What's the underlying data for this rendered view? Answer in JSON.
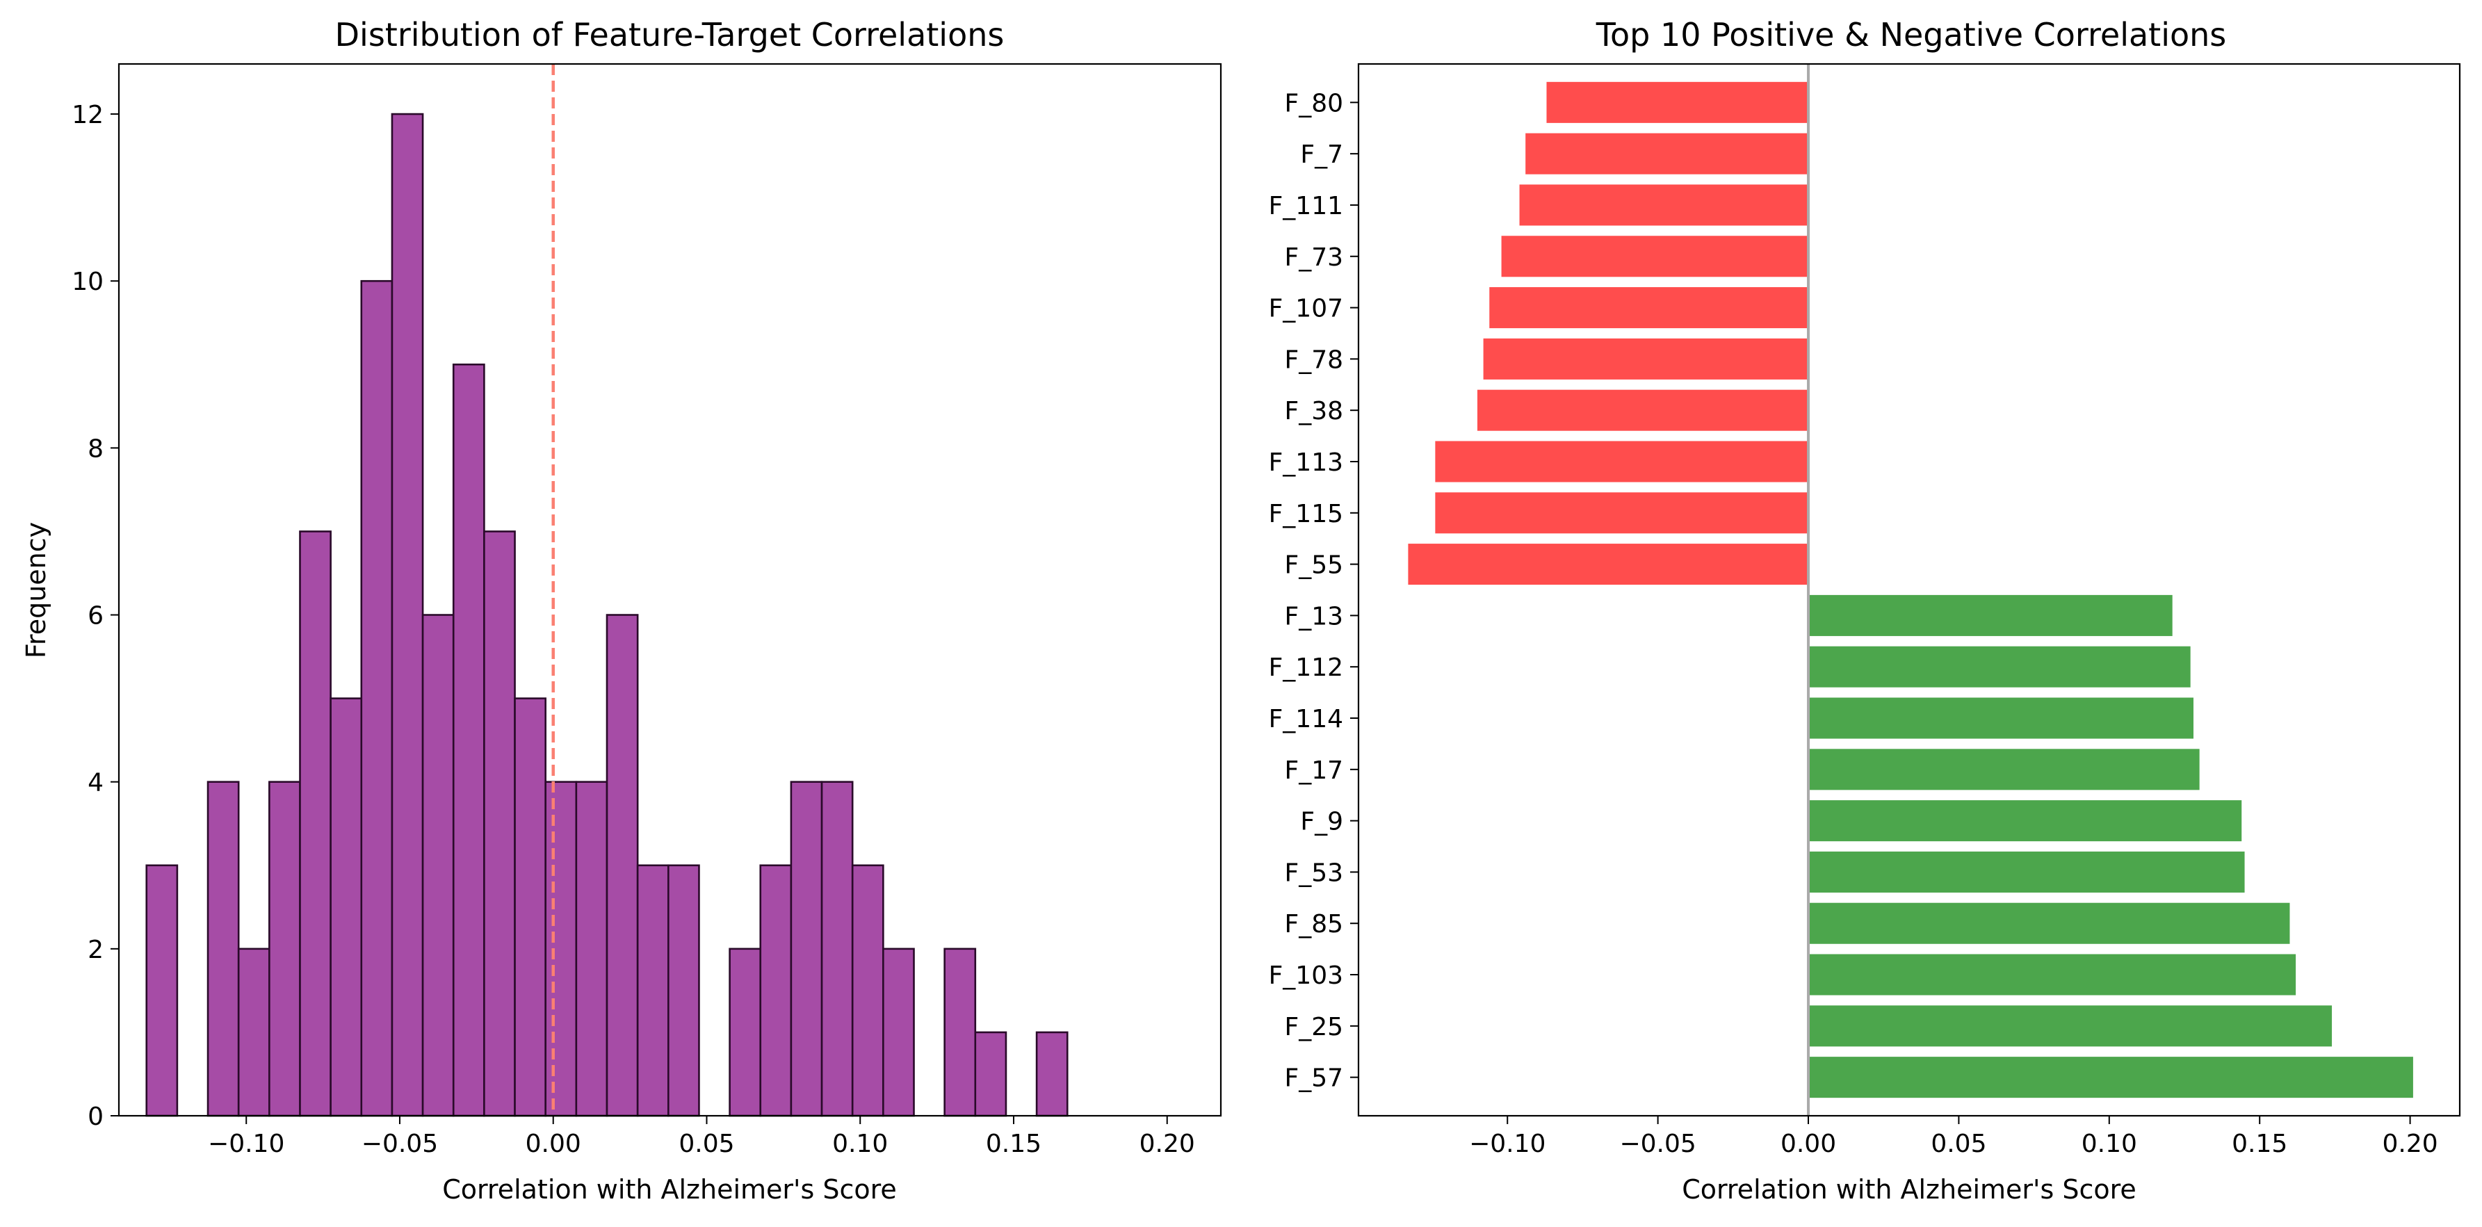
{
  "colors": {
    "hist_fill": "#a64ca6",
    "hist_edge": "#2a0a2a",
    "zero_line": "#fa8072",
    "negative_bar": "#ff4d4d",
    "positive_bar": "#4ca64c",
    "vertical_line": "#aaaaaa"
  },
  "chart_data": [
    {
      "type": "bar",
      "subtype": "histogram",
      "title": "Distribution of Feature-Target Correlations",
      "xlabel": "Correlation with Alzheimer's Score",
      "ylabel": "Frequency",
      "xlim": [
        -0.1415,
        0.2175
      ],
      "ylim": [
        0,
        12.6
      ],
      "xticks": [
        -0.1,
        -0.05,
        0.0,
        0.05,
        0.1,
        0.15,
        0.2
      ],
      "xtick_labels": [
        "−0.10",
        "−0.05",
        "0.00",
        "0.05",
        "0.10",
        "0.15",
        "0.20"
      ],
      "yticks": [
        0,
        2,
        4,
        6,
        8,
        10,
        12
      ],
      "ytick_labels": [
        "0",
        "2",
        "4",
        "6",
        "8",
        "10",
        "12"
      ],
      "bin_start": -0.1325,
      "bin_width": 0.01,
      "counts": [
        3,
        0,
        4,
        2,
        4,
        7,
        5,
        10,
        12,
        6,
        9,
        7,
        5,
        4,
        4,
        6,
        3,
        3,
        0,
        2,
        3,
        4,
        4,
        3,
        2,
        0,
        2,
        1,
        0,
        1
      ],
      "reference_line": {
        "x": 0.0,
        "style": "dashed"
      },
      "grid": false
    },
    {
      "type": "bar",
      "orientation": "horizontal",
      "title": "Top 10 Positive & Negative Correlations",
      "xlabel": "Correlation with Alzheimer's Score",
      "ylabel": "",
      "xlim": [
        -0.1495,
        0.2165
      ],
      "xticks": [
        -0.1,
        -0.05,
        0.0,
        0.05,
        0.1,
        0.15,
        0.2
      ],
      "xtick_labels": [
        "−0.10",
        "−0.05",
        "0.00",
        "0.05",
        "0.10",
        "0.15",
        "0.20"
      ],
      "categories": [
        "F_57",
        "F_25",
        "F_103",
        "F_85",
        "F_53",
        "F_9",
        "F_17",
        "F_114",
        "F_112",
        "F_13",
        "F_55",
        "F_115",
        "F_113",
        "F_38",
        "F_78",
        "F_107",
        "F_73",
        "F_111",
        "F_7",
        "F_80"
      ],
      "values": [
        0.201,
        0.174,
        0.162,
        0.16,
        0.145,
        0.144,
        0.13,
        0.128,
        0.127,
        0.121,
        -0.133,
        -0.124,
        -0.124,
        -0.11,
        -0.108,
        -0.106,
        -0.102,
        -0.096,
        -0.094,
        -0.087
      ],
      "reference_line": {
        "x": 0.0,
        "style": "solid"
      },
      "grid": false
    }
  ]
}
